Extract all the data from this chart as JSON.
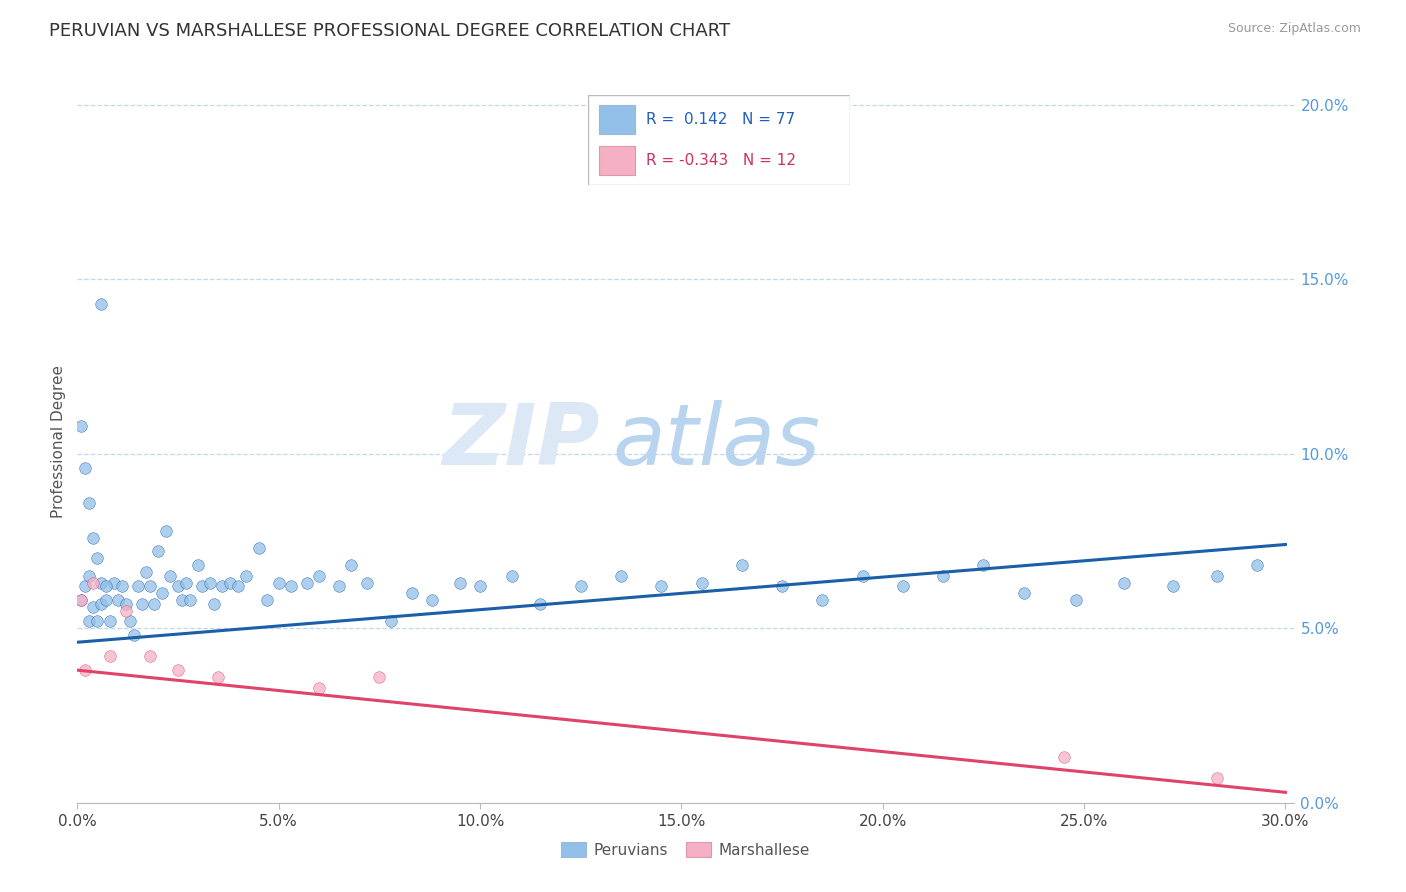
{
  "title": "PERUVIAN VS MARSHALLESE PROFESSIONAL DEGREE CORRELATION CHART",
  "source": "Source: ZipAtlas.com",
  "ylabel": "Professional Degree",
  "r_blue": 0.142,
  "n_blue": 77,
  "r_pink": -0.343,
  "n_pink": 12,
  "blue_color": "#92c0e8",
  "pink_color": "#f5b0c5",
  "blue_line_color": "#1a5fa8",
  "pink_line_color": "#e0436a",
  "legend_blue_label": "Peruvians",
  "legend_pink_label": "Marshallese",
  "xlim": [
    0.0,
    0.302
  ],
  "ylim": [
    0.0,
    0.207
  ],
  "x_ticks": [
    0.0,
    0.05,
    0.1,
    0.15,
    0.2,
    0.25,
    0.3
  ],
  "y_ticks": [
    0.0,
    0.05,
    0.1,
    0.15,
    0.2
  ],
  "watermark_zip": "ZIP",
  "watermark_atlas": "atlas",
  "blue_trend_x": [
    0.0,
    0.3
  ],
  "blue_trend_y": [
    0.046,
    0.074
  ],
  "pink_trend_x": [
    0.0,
    0.3
  ],
  "pink_trend_y": [
    0.038,
    0.003
  ],
  "blue_x": [
    0.001,
    0.002,
    0.003,
    0.003,
    0.004,
    0.005,
    0.006,
    0.006,
    0.007,
    0.008,
    0.009,
    0.01,
    0.011,
    0.012,
    0.013,
    0.014,
    0.015,
    0.016,
    0.017,
    0.018,
    0.019,
    0.02,
    0.021,
    0.022,
    0.023,
    0.025,
    0.026,
    0.027,
    0.028,
    0.03,
    0.031,
    0.033,
    0.034,
    0.036,
    0.038,
    0.04,
    0.042,
    0.045,
    0.047,
    0.05,
    0.053,
    0.057,
    0.06,
    0.065,
    0.068,
    0.072,
    0.078,
    0.083,
    0.088,
    0.095,
    0.1,
    0.108,
    0.115,
    0.125,
    0.135,
    0.145,
    0.155,
    0.165,
    0.175,
    0.185,
    0.195,
    0.205,
    0.215,
    0.225,
    0.235,
    0.248,
    0.26,
    0.272,
    0.283,
    0.293,
    0.001,
    0.002,
    0.003,
    0.004,
    0.005,
    0.006,
    0.007
  ],
  "blue_y": [
    0.058,
    0.062,
    0.065,
    0.052,
    0.056,
    0.07,
    0.063,
    0.057,
    0.058,
    0.052,
    0.063,
    0.058,
    0.062,
    0.057,
    0.052,
    0.048,
    0.062,
    0.057,
    0.066,
    0.062,
    0.057,
    0.072,
    0.06,
    0.078,
    0.065,
    0.062,
    0.058,
    0.063,
    0.058,
    0.068,
    0.062,
    0.063,
    0.057,
    0.062,
    0.063,
    0.062,
    0.065,
    0.073,
    0.058,
    0.063,
    0.062,
    0.063,
    0.065,
    0.062,
    0.068,
    0.063,
    0.052,
    0.06,
    0.058,
    0.063,
    0.062,
    0.065,
    0.057,
    0.062,
    0.065,
    0.062,
    0.063,
    0.068,
    0.062,
    0.058,
    0.065,
    0.062,
    0.065,
    0.068,
    0.06,
    0.058,
    0.063,
    0.062,
    0.065,
    0.068,
    0.108,
    0.096,
    0.086,
    0.076,
    0.052,
    0.143,
    0.062
  ],
  "pink_x": [
    0.001,
    0.002,
    0.004,
    0.008,
    0.012,
    0.018,
    0.025,
    0.035,
    0.06,
    0.075,
    0.245,
    0.283
  ],
  "pink_y": [
    0.058,
    0.038,
    0.063,
    0.042,
    0.055,
    0.042,
    0.038,
    0.036,
    0.033,
    0.036,
    0.013,
    0.007
  ]
}
